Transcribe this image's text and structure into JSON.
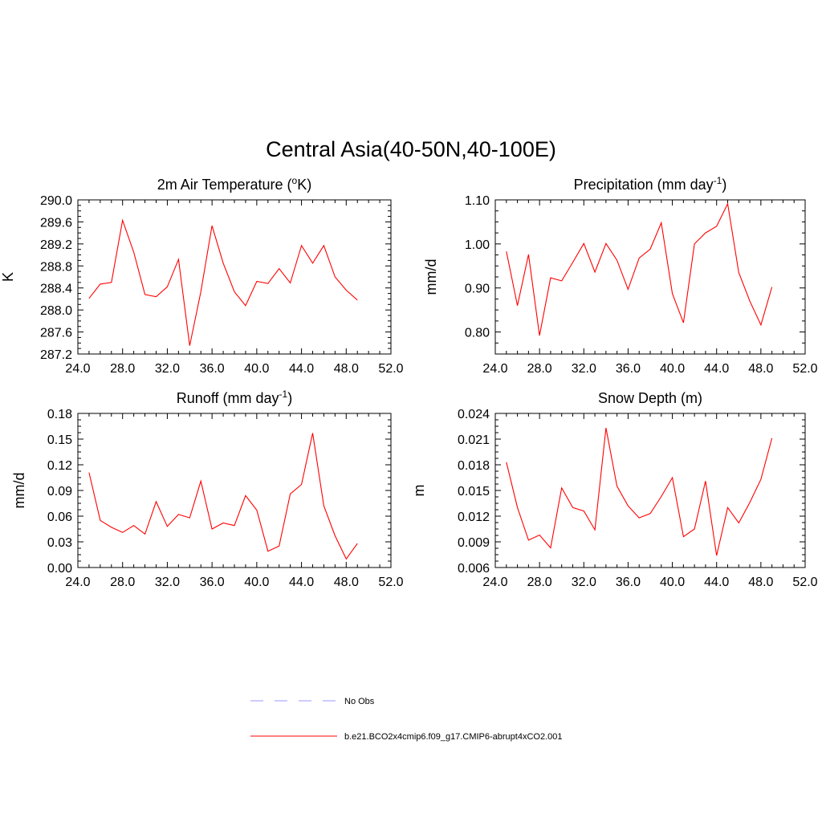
{
  "title": "Central Asia(40-50N,40-100E)",
  "chart_data": [
    {
      "type": "line",
      "id": "temperature",
      "title": "2m Air Temperature (",
      "title_sup": "o",
      "title_end": "K)",
      "ylabel": "K",
      "xlim": [
        24,
        52
      ],
      "ylim": [
        287.2,
        290.0
      ],
      "x_ticks": [
        "24.0",
        "28.0",
        "32.0",
        "36.0",
        "40.0",
        "44.0",
        "48.0",
        "52.0"
      ],
      "y_ticks": [
        "287.2",
        "287.6",
        "288.0",
        "288.4",
        "288.8",
        "289.2",
        "289.6",
        "290.0"
      ],
      "series": [
        {
          "name": "b.e21.BCO2x4cmip6.f09_g17.CMIP6-abrupt4xCO2.001",
          "color": "#ff0000",
          "x": [
            25,
            26,
            27,
            28,
            29,
            30,
            31,
            32,
            33,
            34,
            35,
            36,
            37,
            38,
            39,
            40,
            41,
            42,
            43,
            44,
            45,
            46,
            47,
            48,
            49
          ],
          "y": [
            288.21,
            288.47,
            288.5,
            289.63,
            289.05,
            288.28,
            288.24,
            288.42,
            288.92,
            287.35,
            288.33,
            289.53,
            288.85,
            288.33,
            288.08,
            288.52,
            288.48,
            288.75,
            288.49,
            289.17,
            288.85,
            289.17,
            288.6,
            288.36,
            288.18
          ]
        }
      ]
    },
    {
      "type": "line",
      "id": "precipitation",
      "title": "Precipitation (mm day",
      "title_sup": "-1",
      "title_end": ")",
      "ylabel": "mm/d",
      "xlim": [
        24,
        52
      ],
      "ylim": [
        0.75,
        1.1
      ],
      "x_ticks": [
        "24.0",
        "28.0",
        "32.0",
        "36.0",
        "40.0",
        "44.0",
        "48.0",
        "52.0"
      ],
      "y_ticks": [
        "0.80",
        "0.90",
        "1.00",
        "1.10"
      ],
      "series": [
        {
          "name": "b.e21.BCO2x4cmip6.f09_g17.CMIP6-abrupt4xCO2.001",
          "color": "#ff0000",
          "x": [
            25,
            26,
            27,
            28,
            29,
            30,
            31,
            32,
            33,
            34,
            35,
            36,
            37,
            38,
            39,
            40,
            41,
            42,
            43,
            44,
            45,
            46,
            47,
            48,
            49
          ],
          "y": [
            0.983,
            0.86,
            0.976,
            0.792,
            0.923,
            0.916,
            0.958,
            1.001,
            0.936,
            1.001,
            0.963,
            0.897,
            0.968,
            0.988,
            1.048,
            0.887,
            0.821,
            1.0,
            1.025,
            1.04,
            1.091,
            0.935,
            0.87,
            0.816,
            0.902
          ]
        }
      ]
    },
    {
      "type": "line",
      "id": "runoff",
      "title": "Runoff (mm day",
      "title_sup": "-1",
      "title_end": ")",
      "ylabel": "mm/d",
      "xlim": [
        24,
        52
      ],
      "ylim": [
        0.0,
        0.18
      ],
      "x_ticks": [
        "24.0",
        "28.0",
        "32.0",
        "36.0",
        "40.0",
        "44.0",
        "48.0",
        "52.0"
      ],
      "y_ticks": [
        "0.00",
        "0.03",
        "0.06",
        "0.09",
        "0.12",
        "0.15",
        "0.18"
      ],
      "series": [
        {
          "name": "b.e21.BCO2x4cmip6.f09_g17.CMIP6-abrupt4xCO2.001",
          "color": "#ff0000",
          "x": [
            25,
            26,
            27,
            28,
            29,
            30,
            31,
            32,
            33,
            34,
            35,
            36,
            37,
            38,
            39,
            40,
            41,
            42,
            43,
            44,
            45,
            46,
            47,
            48,
            49
          ],
          "y": [
            0.111,
            0.055,
            0.047,
            0.041,
            0.049,
            0.039,
            0.077,
            0.048,
            0.062,
            0.058,
            0.101,
            0.045,
            0.052,
            0.049,
            0.084,
            0.067,
            0.019,
            0.025,
            0.086,
            0.097,
            0.157,
            0.072,
            0.037,
            0.01,
            0.028
          ]
        }
      ]
    },
    {
      "type": "line",
      "id": "snow",
      "title": "Snow Depth (m)",
      "title_sup": "",
      "title_end": "",
      "ylabel": "m",
      "xlim": [
        24,
        52
      ],
      "ylim": [
        0.006,
        0.024
      ],
      "x_ticks": [
        "24.0",
        "28.0",
        "32.0",
        "36.0",
        "40.0",
        "44.0",
        "48.0",
        "52.0"
      ],
      "y_ticks": [
        "0.006",
        "0.009",
        "0.012",
        "0.015",
        "0.018",
        "0.021",
        "0.024"
      ],
      "series": [
        {
          "name": "b.e21.BCO2x4cmip6.f09_g17.CMIP6-abrupt4xCO2.001",
          "color": "#ff0000",
          "x": [
            25,
            26,
            27,
            28,
            29,
            30,
            31,
            32,
            33,
            34,
            35,
            36,
            37,
            38,
            39,
            40,
            41,
            42,
            43,
            44,
            45,
            46,
            47,
            48,
            49
          ],
          "y": [
            0.0183,
            0.013,
            0.0092,
            0.0098,
            0.0083,
            0.0153,
            0.013,
            0.0126,
            0.0104,
            0.0223,
            0.0155,
            0.0132,
            0.0118,
            0.0123,
            0.0143,
            0.0165,
            0.0096,
            0.0105,
            0.0161,
            0.0074,
            0.013,
            0.0112,
            0.0136,
            0.0163,
            0.0211
          ]
        }
      ]
    }
  ],
  "legend": [
    {
      "label": "No Obs",
      "color": "#9999ff",
      "style": "dashed"
    },
    {
      "label": "b.e21.BCO2x4cmip6.f09_g17.CMIP6-abrupt4xCO2.001",
      "color": "#ff0000",
      "style": "solid"
    }
  ]
}
